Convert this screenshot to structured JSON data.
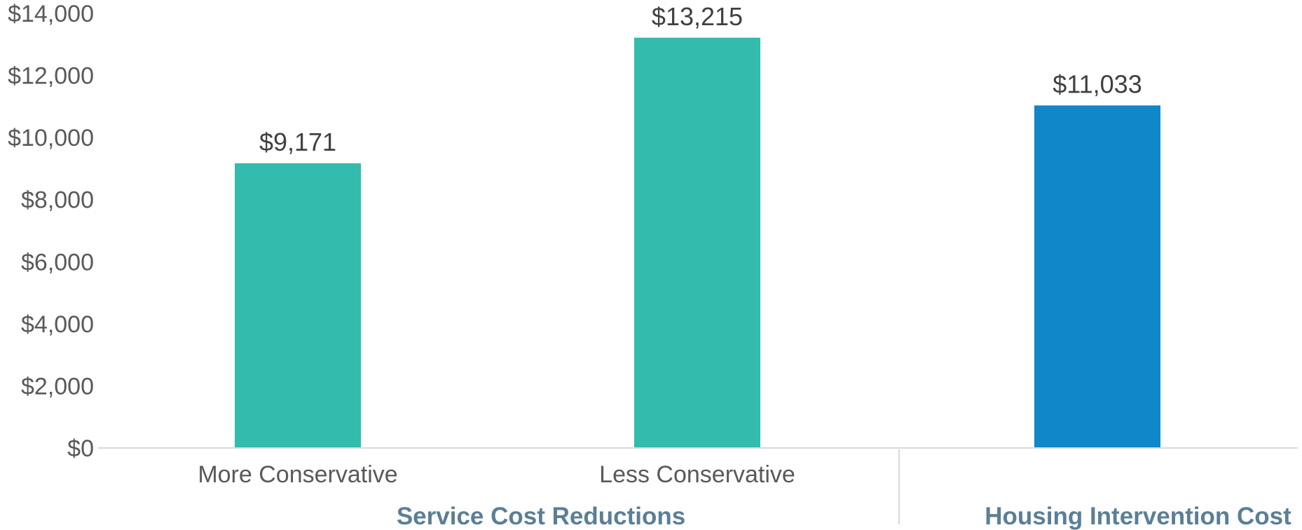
{
  "chart_data": {
    "type": "bar",
    "categories": [
      "More Conservative",
      "Less Conservative",
      ""
    ],
    "values": [
      9171,
      13215,
      11033
    ],
    "value_labels": [
      "$9,171",
      "$13,215",
      "$11,033"
    ],
    "bar_colors": [
      "#33bbad",
      "#33bbad",
      "#0f87c8"
    ],
    "groups": [
      {
        "label": "Service Cost Reductions",
        "categories": [
          0,
          1
        ]
      },
      {
        "label": "Housing Intervention Cost",
        "categories": [
          2
        ]
      }
    ],
    "y_ticks": [
      0,
      2000,
      4000,
      6000,
      8000,
      10000,
      12000,
      14000
    ],
    "y_tick_labels": [
      "$0",
      "$2,000",
      "$4,000",
      "$6,000",
      "$8,000",
      "$10,000",
      "$12,000",
      "$14,000"
    ],
    "ylim": [
      0,
      14000
    ],
    "grid": false,
    "legend": "none",
    "title": "",
    "xlabel": "",
    "ylabel": ""
  }
}
